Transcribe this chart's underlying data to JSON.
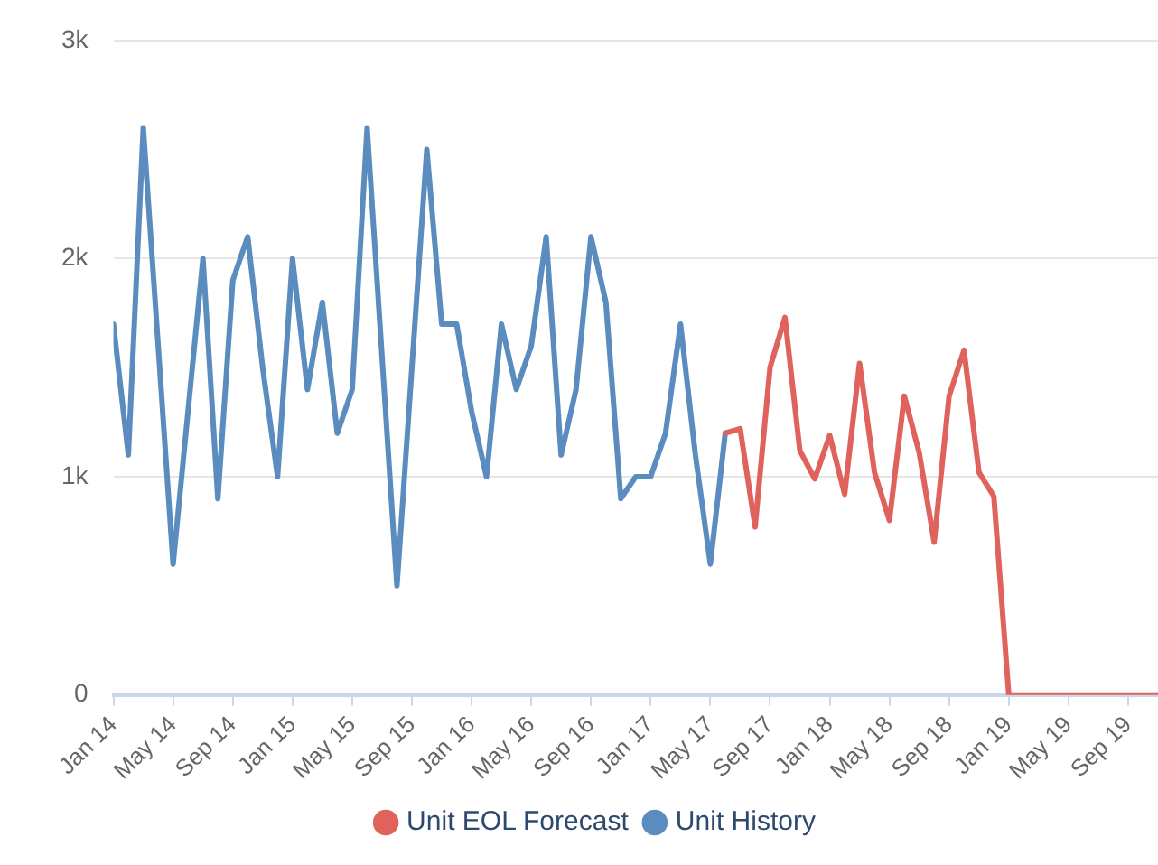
{
  "chart_data": {
    "type": "line",
    "xlim": [
      "2014-01",
      "2019-11"
    ],
    "ylim": [
      0,
      3000
    ],
    "xticks": [
      {
        "value": "2014-01",
        "label": "Jan 14"
      },
      {
        "value": "2014-05",
        "label": "May 14"
      },
      {
        "value": "2014-09",
        "label": "Sep 14"
      },
      {
        "value": "2015-01",
        "label": "Jan 15"
      },
      {
        "value": "2015-05",
        "label": "May 15"
      },
      {
        "value": "2015-09",
        "label": "Sep 15"
      },
      {
        "value": "2016-01",
        "label": "Jan 16"
      },
      {
        "value": "2016-05",
        "label": "May 16"
      },
      {
        "value": "2016-09",
        "label": "Sep 16"
      },
      {
        "value": "2017-01",
        "label": "Jan 17"
      },
      {
        "value": "2017-05",
        "label": "May 17"
      },
      {
        "value": "2017-09",
        "label": "Sep 17"
      },
      {
        "value": "2018-01",
        "label": "Jan 18"
      },
      {
        "value": "2018-05",
        "label": "May 18"
      },
      {
        "value": "2018-09",
        "label": "Sep 18"
      },
      {
        "value": "2019-01",
        "label": "Jan 19"
      },
      {
        "value": "2019-05",
        "label": "May 19"
      },
      {
        "value": "2019-09",
        "label": "Sep 19"
      }
    ],
    "yticks": [
      {
        "value": 0,
        "label": "0"
      },
      {
        "value": 1000,
        "label": "1k"
      },
      {
        "value": 2000,
        "label": "2k"
      },
      {
        "value": 3000,
        "label": "3k"
      }
    ],
    "grid": "y",
    "legend": "bottom",
    "series": [
      {
        "name": "Unit EOL Forecast",
        "color": "#e0625c",
        "x": [
          "2017-06",
          "2017-07",
          "2017-08",
          "2017-09",
          "2017-10",
          "2017-11",
          "2017-12",
          "2018-01",
          "2018-02",
          "2018-03",
          "2018-04",
          "2018-05",
          "2018-06",
          "2018-07",
          "2018-08",
          "2018-09",
          "2018-10",
          "2018-11",
          "2018-12",
          "2019-01",
          "2019-02",
          "2019-03",
          "2019-04",
          "2019-05",
          "2019-06",
          "2019-07",
          "2019-08",
          "2019-09",
          "2019-10",
          "2019-11"
        ],
        "values": [
          1200,
          1220,
          770,
          1500,
          1730,
          1120,
          990,
          1190,
          920,
          1520,
          1020,
          800,
          1370,
          1110,
          700,
          1370,
          1580,
          1020,
          910,
          0,
          0,
          0,
          0,
          0,
          0,
          0,
          0,
          0,
          0,
          0
        ]
      },
      {
        "name": "Unit History",
        "color": "#5b8cc0",
        "x": [
          "2014-01",
          "2014-02",
          "2014-03",
          "2014-04",
          "2014-05",
          "2014-06",
          "2014-07",
          "2014-08",
          "2014-09",
          "2014-10",
          "2014-11",
          "2014-12",
          "2015-01",
          "2015-02",
          "2015-03",
          "2015-04",
          "2015-05",
          "2015-06",
          "2015-07",
          "2015-08",
          "2015-09",
          "2015-10",
          "2015-11",
          "2015-12",
          "2016-01",
          "2016-02",
          "2016-03",
          "2016-04",
          "2016-05",
          "2016-06",
          "2016-07",
          "2016-08",
          "2016-09",
          "2016-10",
          "2016-11",
          "2016-12",
          "2017-01",
          "2017-02",
          "2017-03",
          "2017-04",
          "2017-05",
          "2017-06"
        ],
        "values": [
          1700,
          1100,
          2600,
          1600,
          600,
          1300,
          2000,
          900,
          1900,
          2100,
          1500,
          1000,
          2000,
          1400,
          1800,
          1200,
          1400,
          2600,
          1550,
          500,
          1500,
          2500,
          1700,
          1700,
          1300,
          1000,
          1700,
          1400,
          1600,
          2100,
          1100,
          1400,
          2100,
          1800,
          900,
          1000,
          1000,
          1200,
          1700,
          1100,
          600,
          1200
        ]
      }
    ]
  }
}
